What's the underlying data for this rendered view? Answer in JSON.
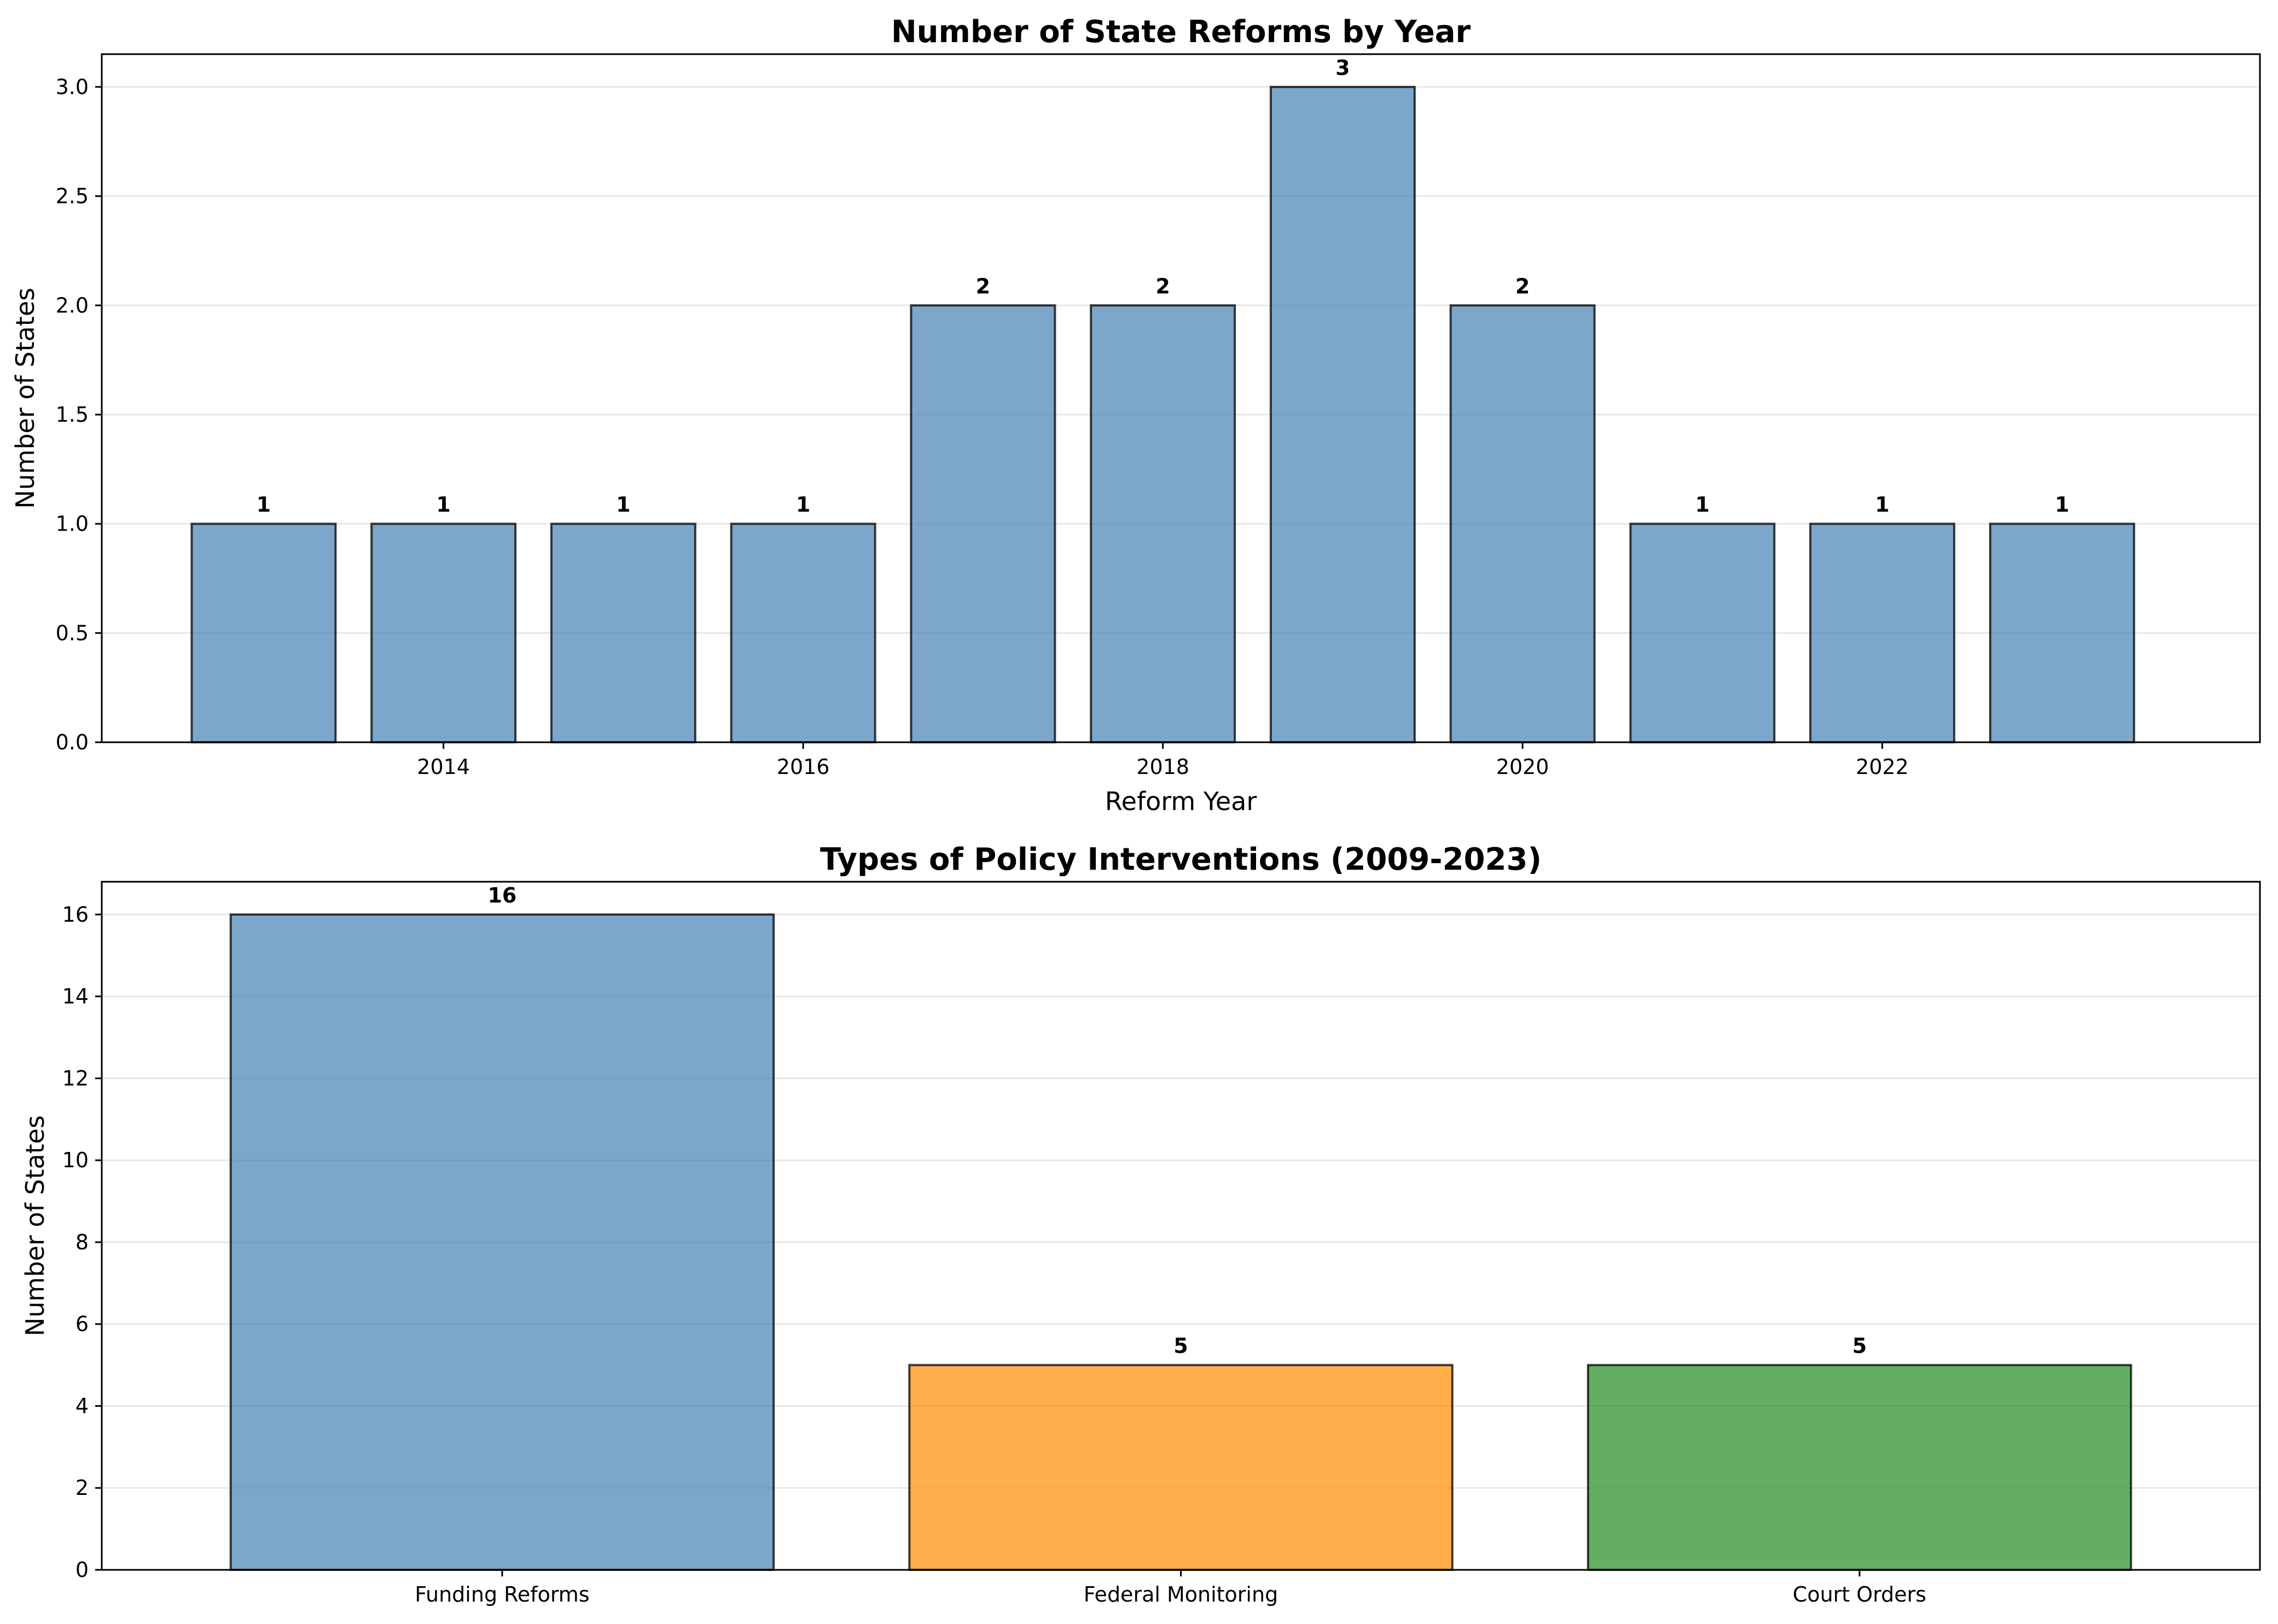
{
  "chart_data": [
    {
      "type": "bar",
      "title": "Number of State Reforms by Year",
      "xlabel": "Reform Year",
      "ylabel": "Number of States",
      "x": [
        2013,
        2014,
        2015,
        2016,
        2017,
        2018,
        2019,
        2020,
        2021,
        2022,
        2023
      ],
      "values": [
        1,
        1,
        1,
        1,
        2,
        2,
        3,
        2,
        1,
        1,
        1
      ],
      "data_labels": [
        "1",
        "1",
        "1",
        "1",
        "2",
        "2",
        "3",
        "2",
        "1",
        "1",
        "1"
      ],
      "xticks": [
        2014,
        2016,
        2018,
        2020,
        2022
      ],
      "xtick_labels": [
        "2014",
        "2016",
        "2018",
        "2020",
        "2022"
      ],
      "yticks": [
        0,
        0.5,
        1,
        1.5,
        2,
        2.5,
        3
      ],
      "ytick_labels": [
        "0.0",
        "0.5",
        "1.0",
        "1.5",
        "2.0",
        "2.5",
        "3.0"
      ],
      "xlim": [
        2012.1,
        2024.1
      ],
      "ylim": [
        0,
        3.15
      ],
      "grid": "y",
      "colors": [
        "#4682b4"
      ]
    },
    {
      "type": "bar",
      "title": "Types of Policy Interventions (2009-2023)",
      "xlabel": "",
      "ylabel": "Number of States",
      "categories": [
        "Funding Reforms",
        "Federal Monitoring",
        "Court Orders"
      ],
      "values": [
        16,
        5,
        5
      ],
      "data_labels": [
        "16",
        "5",
        "5"
      ],
      "yticks": [
        0,
        2,
        4,
        6,
        8,
        10,
        12,
        14,
        16
      ],
      "ytick_labels": [
        "0",
        "2",
        "4",
        "6",
        "8",
        "10",
        "12",
        "14",
        "16"
      ],
      "ylim": [
        0,
        16.8
      ],
      "grid": "y",
      "colors": [
        "#4682b4",
        "#ff8c00",
        "#228b22"
      ]
    }
  ]
}
